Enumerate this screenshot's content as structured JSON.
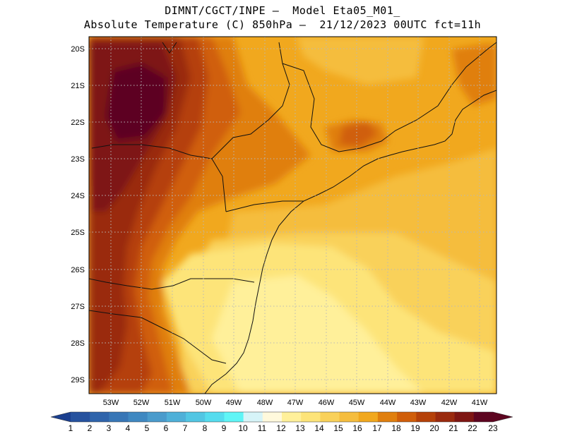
{
  "header": {
    "line1": "DIMNT/CGCT/INPE –  Model Eta05_M01_",
    "line2": "Absolute Temperature (C) 850hPa –  21/12/2023 00UTC fct=11h"
  },
  "map": {
    "lat_labels": [
      "20S",
      "21S",
      "22S",
      "23S",
      "24S",
      "25S",
      "26S",
      "27S",
      "28S",
      "29S"
    ],
    "lon_labels": [
      "53W",
      "52W",
      "51W",
      "50W",
      "49W",
      "48W",
      "47W",
      "46W",
      "45W",
      "44W",
      "43W",
      "42W",
      "41W"
    ]
  },
  "colorbar": {
    "labels": [
      "1",
      "2",
      "3",
      "4",
      "5",
      "6",
      "7",
      "8",
      "9",
      "10",
      "11",
      "12",
      "13",
      "14",
      "15",
      "16",
      "17",
      "18",
      "19",
      "20",
      "21",
      "22",
      "23"
    ],
    "colors": [
      "#1b3f8f",
      "#26529e",
      "#2f64ab",
      "#3876b6",
      "#3f88c1",
      "#4a9bcc",
      "#4fb0d8",
      "#52c6e3",
      "#55dcee",
      "#5ff5f6",
      "#d6f4f8",
      "#fff9dc",
      "#fff09a",
      "#fde479",
      "#f9d15a",
      "#f5bd3e",
      "#f1a81e",
      "#e07f0e",
      "#d05e0a",
      "#b54109",
      "#9a2a0e",
      "#7e1613",
      "#5d0520"
    ]
  }
}
